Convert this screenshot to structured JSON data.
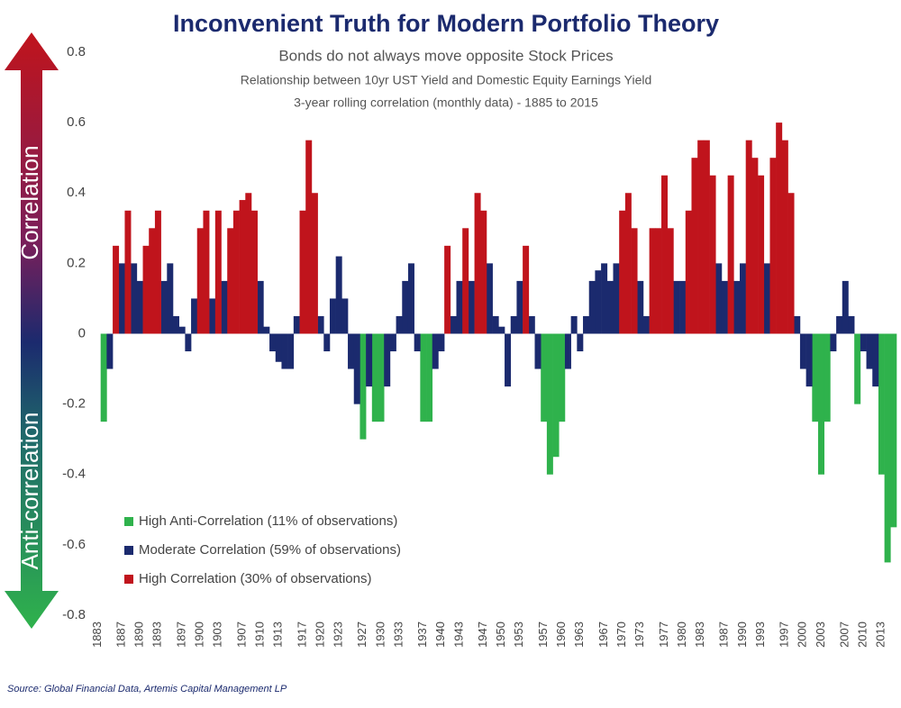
{
  "chart_data": {
    "type": "bar",
    "title": "Inconvenient Truth for Modern Portfolio Theory",
    "subtitle": "Bonds do not always move opposite Stock Prices",
    "subtitle2": "Relationship between 10yr UST Yield and Domestic Equity Earnings Yield",
    "subtitle3": "3-year rolling correlation (monthly data) - 1885 to 2015",
    "annotations": [
      "Correlation",
      "Anti-correlation"
    ],
    "source": "Source: Global Financial Data, Artemis Capital Management LP",
    "legend": "lower left",
    "xlim": [
      1882.5,
      2015.5
    ],
    "xticks": [
      1883,
      1887,
      1890,
      1893,
      1897,
      1900,
      1903,
      1907,
      1910,
      1913,
      1917,
      1920,
      1923,
      1927,
      1930,
      1933,
      1937,
      1940,
      1943,
      1947,
      1950,
      1953,
      1957,
      1960,
      1963,
      1967,
      1970,
      1973,
      1977,
      1980,
      1983,
      1987,
      1990,
      1993,
      1997,
      2000,
      2003,
      2007,
      2010,
      2013
    ],
    "ylim": [
      -0.8,
      0.8
    ],
    "yticks": [
      0.8,
      0.6,
      0.4,
      0.2,
      0,
      -0.2,
      -0.4,
      -0.6,
      -0.8
    ],
    "series": [
      {
        "name": "High Anti-Correlation (11% of observations)",
        "color": "#2fb24c",
        "x": [
          1884,
          1927,
          1929,
          1930,
          1937,
          1938,
          1957,
          1958,
          1959,
          1960,
          2002,
          2003,
          2004,
          2009,
          2013,
          2014,
          2015
        ],
        "values": [
          -0.25,
          -0.3,
          -0.25,
          -0.25,
          -0.25,
          -0.25,
          -0.25,
          -0.4,
          -0.35,
          -0.25,
          -0.25,
          -0.4,
          -0.25,
          -0.2,
          -0.4,
          -0.65,
          -0.55
        ]
      },
      {
        "name": "Moderate Correlation (59% of observations)",
        "color": "#1b2a6e",
        "x": [
          1885,
          1887,
          1889,
          1890,
          1894,
          1895,
          1896,
          1897,
          1898,
          1899,
          1902,
          1904,
          1910,
          1911,
          1912,
          1913,
          1914,
          1915,
          1916,
          1920,
          1921,
          1922,
          1923,
          1924,
          1925,
          1926,
          1928,
          1931,
          1932,
          1933,
          1934,
          1935,
          1936,
          1939,
          1940,
          1942,
          1943,
          1945,
          1948,
          1949,
          1950,
          1951,
          1952,
          1953,
          1955,
          1956,
          1961,
          1962,
          1963,
          1964,
          1965,
          1966,
          1967,
          1968,
          1969,
          1973,
          1974,
          1979,
          1980,
          1986,
          1987,
          1989,
          1990,
          1994,
          1999,
          2000,
          2001,
          2005,
          2006,
          2007,
          2008,
          2010,
          2011,
          2012
        ],
        "values": [
          -0.1,
          0.2,
          0.2,
          0.15,
          0.15,
          0.2,
          0.05,
          0.02,
          -0.05,
          0.1,
          0.1,
          0.15,
          0.15,
          0.02,
          -0.05,
          -0.08,
          -0.1,
          -0.1,
          0.05,
          0.05,
          -0.05,
          0.1,
          0.22,
          0.1,
          -0.1,
          -0.2,
          -0.15,
          -0.15,
          -0.05,
          0.05,
          0.15,
          0.2,
          -0.05,
          -0.1,
          -0.05,
          0.05,
          0.15,
          0.15,
          0.2,
          0.05,
          0.02,
          -0.15,
          0.05,
          0.15,
          0.05,
          -0.1,
          -0.1,
          0.05,
          -0.05,
          0.05,
          0.15,
          0.18,
          0.2,
          0.15,
          0.2,
          0.15,
          0.05,
          0.15,
          0.15,
          0.2,
          0.15,
          0.15,
          0.2,
          0.2,
          0.05,
          -0.1,
          -0.15,
          -0.05,
          0.05,
          0.15,
          0.05,
          -0.05,
          -0.1,
          -0.15
        ]
      },
      {
        "name": "High Correlation (30% of observations)",
        "color": "#c0141c",
        "x": [
          1886,
          1888,
          1891,
          1892,
          1893,
          1900,
          1901,
          1903,
          1905,
          1906,
          1907,
          1908,
          1909,
          1917,
          1918,
          1919,
          1941,
          1944,
          1946,
          1947,
          1954,
          1970,
          1971,
          1972,
          1975,
          1976,
          1977,
          1978,
          1981,
          1982,
          1983,
          1984,
          1985,
          1988,
          1991,
          1992,
          1993,
          1995,
          1996,
          1997,
          1998
        ],
        "values": [
          0.25,
          0.35,
          0.25,
          0.3,
          0.35,
          0.3,
          0.35,
          0.35,
          0.3,
          0.35,
          0.38,
          0.4,
          0.35,
          0.35,
          0.55,
          0.4,
          0.25,
          0.3,
          0.4,
          0.35,
          0.25,
          0.35,
          0.4,
          0.3,
          0.3,
          0.3,
          0.45,
          0.3,
          0.35,
          0.5,
          0.55,
          0.55,
          0.45,
          0.45,
          0.55,
          0.5,
          0.45,
          0.5,
          0.6,
          0.55,
          0.4
        ]
      }
    ]
  }
}
